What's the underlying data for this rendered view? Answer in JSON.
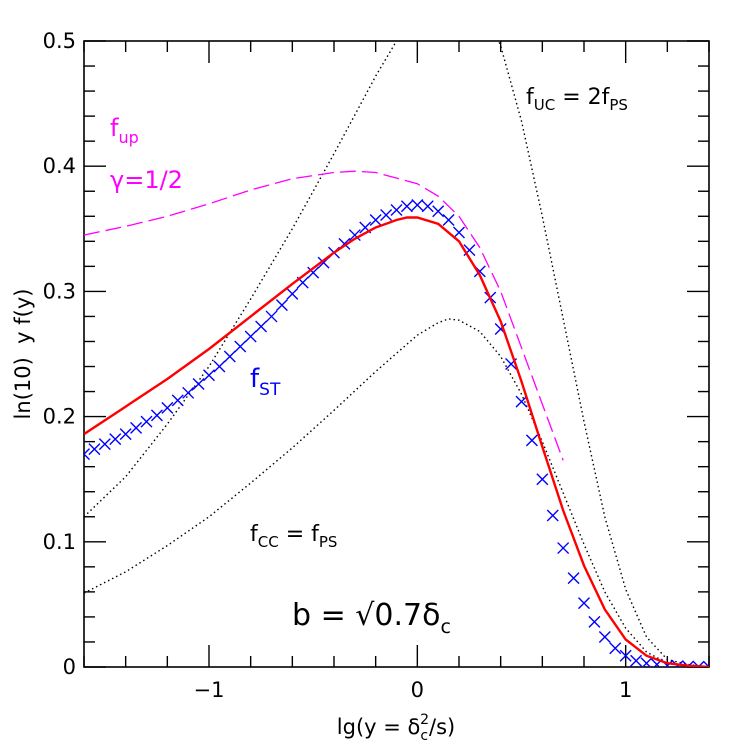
{
  "chart_data": {
    "type": "line",
    "title": "",
    "xlabel": "lg(y = δc²/s)",
    "ylabel": "ln(10)  y f(y)",
    "xlim": [
      -1.6,
      1.4
    ],
    "ylim": [
      0,
      0.5
    ],
    "x_ticks": [
      {
        "value": -1,
        "label": "−1"
      },
      {
        "value": 0,
        "label": "0"
      },
      {
        "value": 1,
        "label": "1"
      }
    ],
    "y_ticks": [
      {
        "value": 0,
        "label": "0"
      },
      {
        "value": 0.1,
        "label": "0.1"
      },
      {
        "value": 0.2,
        "label": "0.2"
      },
      {
        "value": 0.3,
        "label": "0.3"
      },
      {
        "value": 0.4,
        "label": "0.4"
      },
      {
        "value": 0.5,
        "label": "0.5"
      }
    ],
    "grid": false,
    "series": [
      {
        "name": "f_CC = f_PS",
        "style": "dotted",
        "color": "#000000",
        "x": [
          -1.6,
          -1.4,
          -1.2,
          -1.0,
          -0.8,
          -0.6,
          -0.4,
          -0.2,
          0.0,
          0.1,
          0.15,
          0.2,
          0.3,
          0.4,
          0.5,
          0.6,
          0.7,
          0.8,
          0.9,
          1.0,
          1.1,
          1.2,
          1.3,
          1.4
        ],
        "y": [
          0.059,
          0.076,
          0.097,
          0.12,
          0.147,
          0.175,
          0.205,
          0.236,
          0.265,
          0.275,
          0.278,
          0.277,
          0.268,
          0.248,
          0.218,
          0.18,
          0.139,
          0.098,
          0.06,
          0.031,
          0.012,
          0.003,
          0.001,
          0.0
        ]
      },
      {
        "name": "f_UC = 2f_PS",
        "style": "dotted",
        "color": "#000000",
        "x": [
          -1.6,
          -1.4,
          -1.2,
          -1.0,
          -0.8,
          -0.6,
          -0.4,
          -0.2,
          -0.1,
          0.1,
          0.3,
          0.4,
          0.5,
          0.6,
          0.7,
          0.8,
          0.9,
          1.0,
          1.1,
          1.2,
          1.3,
          1.4
        ],
        "y": [
          0.12,
          0.152,
          0.194,
          0.24,
          0.294,
          0.35,
          0.41,
          0.472,
          0.5,
          0.55,
          0.536,
          0.496,
          0.436,
          0.36,
          0.278,
          0.196,
          0.12,
          0.062,
          0.024,
          0.006,
          0.002,
          0.0
        ]
      },
      {
        "name": "f_up",
        "style": "dashed",
        "color": "#ff00ff",
        "x": [
          -1.6,
          -1.4,
          -1.2,
          -1.0,
          -0.8,
          -0.6,
          -0.4,
          -0.3,
          -0.2,
          0.0,
          0.1,
          0.2,
          0.3,
          0.4,
          0.5,
          0.6,
          0.7
        ],
        "y": [
          0.345,
          0.352,
          0.36,
          0.37,
          0.381,
          0.39,
          0.395,
          0.396,
          0.395,
          0.386,
          0.376,
          0.36,
          0.335,
          0.3,
          0.255,
          0.21,
          0.165
        ]
      },
      {
        "name": "f_ST",
        "style": "markers-x",
        "color": "#0000ff",
        "x": [
          -1.6,
          -1.55,
          -1.5,
          -1.45,
          -1.4,
          -1.35,
          -1.3,
          -1.25,
          -1.2,
          -1.15,
          -1.1,
          -1.05,
          -1.0,
          -0.95,
          -0.9,
          -0.85,
          -0.8,
          -0.75,
          -0.7,
          -0.65,
          -0.6,
          -0.55,
          -0.5,
          -0.45,
          -0.4,
          -0.35,
          -0.3,
          -0.25,
          -0.2,
          -0.15,
          -0.1,
          -0.05,
          0.0,
          0.05,
          0.1,
          0.15,
          0.2,
          0.25,
          0.3,
          0.35,
          0.4,
          0.45,
          0.5,
          0.55,
          0.6,
          0.65,
          0.7,
          0.75,
          0.8,
          0.85,
          0.9,
          0.95,
          1.0,
          1.05,
          1.1,
          1.15,
          1.2,
          1.25,
          1.3,
          1.35,
          1.4
        ],
        "y": [
          0.17,
          0.174,
          0.178,
          0.182,
          0.186,
          0.191,
          0.196,
          0.201,
          0.207,
          0.213,
          0.219,
          0.226,
          0.233,
          0.24,
          0.248,
          0.256,
          0.264,
          0.272,
          0.28,
          0.289,
          0.298,
          0.307,
          0.315,
          0.323,
          0.331,
          0.338,
          0.345,
          0.351,
          0.357,
          0.361,
          0.365,
          0.368,
          0.369,
          0.368,
          0.364,
          0.357,
          0.347,
          0.333,
          0.316,
          0.295,
          0.27,
          0.242,
          0.212,
          0.181,
          0.15,
          0.121,
          0.095,
          0.071,
          0.051,
          0.036,
          0.024,
          0.015,
          0.009,
          0.005,
          0.003,
          0.002,
          0.001,
          0.0007,
          0.0004,
          0.0002,
          0.0001
        ]
      },
      {
        "name": "b = √0.7 δc",
        "style": "solid",
        "color": "#ff0000",
        "x": [
          -1.6,
          -1.4,
          -1.2,
          -1.0,
          -0.8,
          -0.6,
          -0.4,
          -0.3,
          -0.2,
          -0.1,
          -0.05,
          0.0,
          0.1,
          0.2,
          0.3,
          0.4,
          0.5,
          0.6,
          0.7,
          0.8,
          0.9,
          1.0,
          1.1,
          1.2,
          1.3,
          1.4
        ],
        "y": [
          0.186,
          0.208,
          0.23,
          0.254,
          0.28,
          0.306,
          0.331,
          0.342,
          0.351,
          0.357,
          0.359,
          0.359,
          0.354,
          0.34,
          0.313,
          0.276,
          0.228,
          0.176,
          0.125,
          0.081,
          0.046,
          0.022,
          0.009,
          0.003,
          0.001,
          0.0
        ]
      }
    ],
    "annotations": [
      {
        "text": "f",
        "sub": "UC",
        "rest": " = 2f",
        "rest_sub": "PS",
        "color": "#000000"
      },
      {
        "text": "f",
        "sub": "up",
        "color": "#ff00ff"
      },
      {
        "text": "γ=1/2",
        "color": "#ff00ff"
      },
      {
        "text": "f",
        "sub": "ST",
        "color": "#0000ff"
      },
      {
        "text": "f",
        "sub": "CC",
        "rest": " = f",
        "rest_sub": "PS",
        "color": "#000000"
      },
      {
        "text": "b = √0.7δ",
        "sub": "c",
        "color": "#000000"
      }
    ]
  }
}
